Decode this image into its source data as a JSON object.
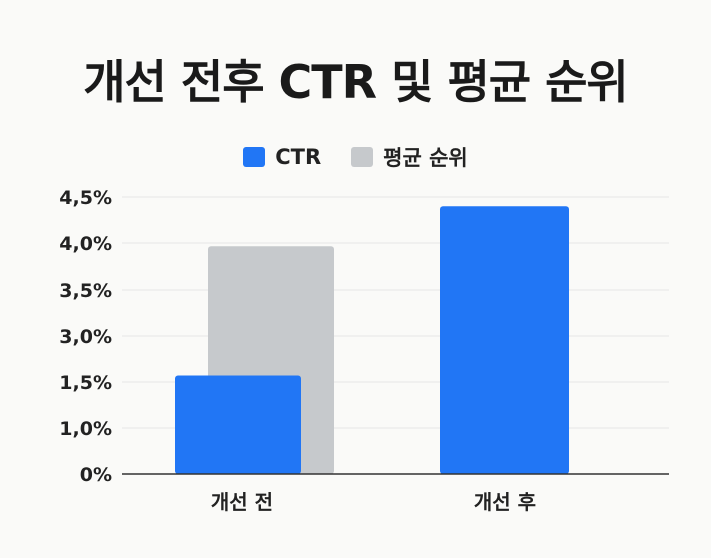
{
  "chart_data": {
    "type": "bar",
    "title": "개선 전후 CTR 및 평균 순위",
    "categories": [
      "개선 전",
      "개선 후"
    ],
    "series": [
      {
        "name": "CTR",
        "values": [
          1.6,
          4.35
        ],
        "color": "#2176f5"
      },
      {
        "name": "평균 순위",
        "values": [
          3.7,
          null
        ],
        "color": "#c6c9cc"
      }
    ],
    "y_ticks": [
      "0%",
      "1,0%",
      "1,5%",
      "3,0%",
      "3,5%",
      "4,0%",
      "4,5%"
    ],
    "y_tick_values": [
      0,
      1.0,
      1.5,
      3.0,
      3.5,
      4.0,
      4.5
    ],
    "ylim": [
      0,
      4.5
    ],
    "legend_position": "top",
    "grid": true
  }
}
